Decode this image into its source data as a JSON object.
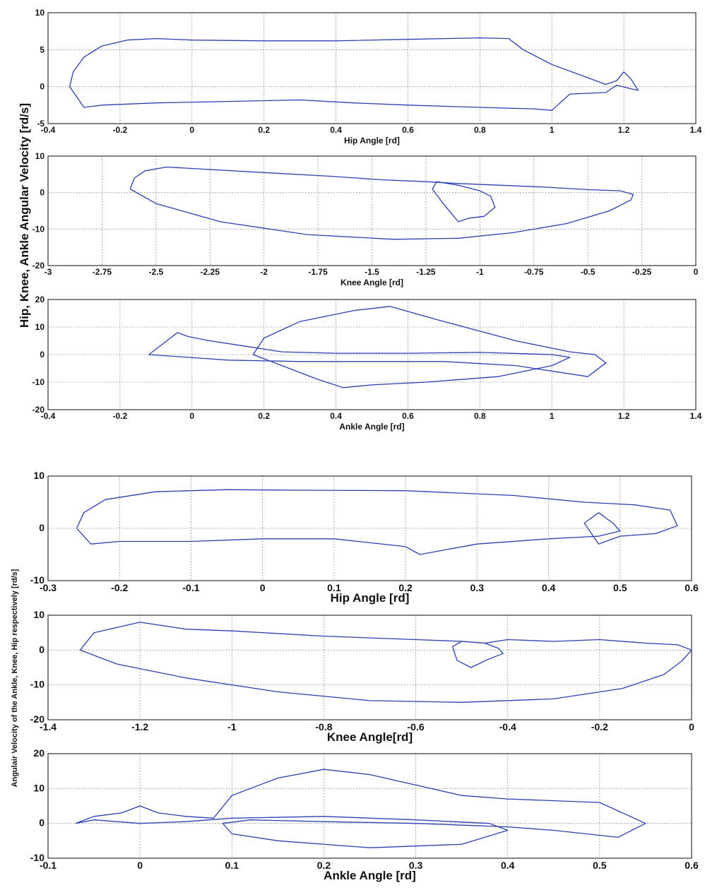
{
  "figure": {
    "ylabel_top": "Hip, Knee, Ankle Angular Velocity [rd/s]",
    "ylabel_bottom": "Angulair Velocity of the Ankle, Knee, Hip respectively [rd/s]"
  },
  "chart_data": [
    {
      "type": "line",
      "xlabel": "Hip Angle [rd]",
      "ylabel": "",
      "xlim": [
        -0.4,
        1.4
      ],
      "ylim": [
        -5,
        10
      ],
      "xticks": [
        "-0.4",
        "-0.2",
        "0",
        "0.2",
        "0.4",
        "0.6",
        "0.8",
        "1",
        "1.2",
        "1.4"
      ],
      "yticks": [
        "-5",
        "0",
        "5",
        "10"
      ],
      "grid": true,
      "series": [
        {
          "x": [
            -0.34,
            -0.33,
            -0.3,
            -0.25,
            -0.18,
            -0.1,
            0.0,
            0.2,
            0.4,
            0.6,
            0.8,
            0.88,
            0.92,
            1.0,
            1.1,
            1.15,
            1.18,
            1.2,
            1.22,
            1.24,
            1.22,
            1.18,
            1.15,
            1.05,
            1.0,
            0.95,
            0.8,
            0.6,
            0.45,
            0.3,
            0.1,
            -0.1,
            -0.25,
            -0.3,
            -0.34
          ],
          "y": [
            0.0,
            2.0,
            4.0,
            5.5,
            6.3,
            6.5,
            6.3,
            6.2,
            6.2,
            6.4,
            6.6,
            6.5,
            5.0,
            3.0,
            1.2,
            0.3,
            0.8,
            2.0,
            1.0,
            -0.5,
            -0.3,
            0.2,
            -0.8,
            -1.0,
            -3.2,
            -3.0,
            -2.8,
            -2.5,
            -2.2,
            -1.8,
            -2.0,
            -2.2,
            -2.5,
            -2.8,
            0.0
          ]
        }
      ]
    },
    {
      "type": "line",
      "xlabel": "Knee Angle [rd]",
      "ylabel": "",
      "xlim": [
        -3,
        0
      ],
      "ylim": [
        -20,
        10
      ],
      "xticks": [
        "-3",
        "-2.75",
        "-2.5",
        "-2.25",
        "-2",
        "-1.75",
        "-1.5",
        "-1.25",
        "-1",
        "-0.75",
        "-0.5",
        "-0.25",
        "0"
      ],
      "yticks": [
        "-20",
        "-10",
        "0",
        "10"
      ],
      "grid": true,
      "series": [
        {
          "x": [
            -2.62,
            -2.6,
            -2.55,
            -2.45,
            -2.3,
            -2.0,
            -1.7,
            -1.45,
            -1.25,
            -1.1,
            -0.9,
            -0.7,
            -0.5,
            -0.35,
            -0.29,
            -0.3,
            -0.4,
            -0.6,
            -0.85,
            -1.1,
            -1.4,
            -1.8,
            -2.2,
            -2.5,
            -2.62
          ],
          "y": [
            1.0,
            4.0,
            6.0,
            7.0,
            6.5,
            5.5,
            4.5,
            3.5,
            3.0,
            2.5,
            2.0,
            1.5,
            0.8,
            0.5,
            -0.5,
            -2.0,
            -5.0,
            -8.5,
            -11.0,
            -12.5,
            -12.8,
            -11.5,
            -8.0,
            -3.0,
            1.0
          ]
        },
        {
          "x": [
            -1.22,
            -1.2,
            -1.1,
            -1.0,
            -0.95,
            -0.93,
            -0.98,
            -1.05,
            -1.1,
            -1.17,
            -1.22
          ],
          "y": [
            1.0,
            3.0,
            2.0,
            0.5,
            -1.0,
            -4.0,
            -6.5,
            -7.0,
            -8.0,
            -3.0,
            1.0
          ]
        }
      ]
    },
    {
      "type": "line",
      "xlabel": "Ankle Angle [rd]",
      "ylabel": "",
      "xlim": [
        -0.4,
        1.4
      ],
      "ylim": [
        -20,
        20
      ],
      "xticks": [
        "-0.4",
        "-0.2",
        "0",
        "0.2",
        "0.4",
        "0.6",
        "0.8",
        "1",
        "1.2",
        "1.4"
      ],
      "yticks": [
        "-20",
        "-10",
        "0",
        "10",
        "20"
      ],
      "grid": true,
      "series": [
        {
          "x": [
            -0.12,
            -0.08,
            -0.04,
            -0.01,
            0.05,
            0.15,
            0.25,
            0.4,
            0.6,
            0.8,
            1.0,
            1.05,
            1.0,
            0.85,
            0.65,
            0.5,
            0.42,
            0.35,
            0.25,
            0.17,
            0.2,
            0.3,
            0.45,
            0.55,
            0.7,
            0.9,
            1.05,
            1.12,
            1.15,
            1.1,
            0.9,
            0.7,
            0.5,
            0.3,
            0.1,
            -0.12
          ],
          "y": [
            0.0,
            4.0,
            8.0,
            6.5,
            5.0,
            3.0,
            1.0,
            0.5,
            0.5,
            0.8,
            0.0,
            -1.0,
            -4.0,
            -8.0,
            -10.0,
            -11.0,
            -12.0,
            -9.0,
            -4.0,
            0.0,
            6.0,
            12.0,
            16.0,
            17.5,
            12.0,
            5.0,
            1.0,
            0.0,
            -3.0,
            -8.0,
            -4.0,
            -2.5,
            -2.5,
            -2.5,
            -2.0,
            0.0
          ]
        }
      ]
    },
    {
      "type": "line",
      "xlabel": "Hip Angle [rd]",
      "ylabel": "",
      "xlim": [
        -0.3,
        0.6
      ],
      "ylim": [
        -10,
        10
      ],
      "xticks": [
        "-0.3",
        "-0.2",
        "-0.1",
        "0",
        "0.1",
        "0.2",
        "0.3",
        "0.4",
        "0.5",
        "0.6"
      ],
      "yticks": [
        "-10",
        "0",
        "10"
      ],
      "grid": true,
      "series": [
        {
          "x": [
            -0.26,
            -0.25,
            -0.22,
            -0.15,
            -0.05,
            0.05,
            0.2,
            0.35,
            0.45,
            0.52,
            0.57,
            0.58,
            0.55,
            0.5,
            0.47,
            0.46,
            0.45,
            0.47,
            0.49,
            0.5,
            0.47,
            0.4,
            0.3,
            0.22,
            0.2,
            0.1,
            0.0,
            -0.1,
            -0.2,
            -0.24,
            -0.26
          ],
          "y": [
            0.0,
            3.0,
            5.5,
            7.0,
            7.4,
            7.3,
            7.2,
            6.3,
            5.0,
            4.5,
            3.5,
            0.5,
            -1.0,
            -1.5,
            -3.0,
            -1.0,
            1.0,
            3.0,
            1.0,
            -0.5,
            -1.5,
            -2.0,
            -3.0,
            -5.0,
            -3.5,
            -2.0,
            -2.0,
            -2.5,
            -2.5,
            -3.0,
            0.0
          ]
        }
      ]
    },
    {
      "type": "line",
      "xlabel": "Knee Angle[rd]",
      "ylabel": "",
      "xlim": [
        -1.4,
        0
      ],
      "ylim": [
        -20,
        10
      ],
      "xticks": [
        "-1.4",
        "-1.2",
        "-1",
        "-0.8",
        "-0.6",
        "-0.4",
        "-0.2",
        "0"
      ],
      "yticks": [
        "-20",
        "-10",
        "0",
        "10"
      ],
      "grid": true,
      "series": [
        {
          "x": [
            -1.33,
            -1.3,
            -1.2,
            -1.1,
            -1.0,
            -0.8,
            -0.6,
            -0.5,
            -0.45,
            -0.4,
            -0.3,
            -0.2,
            -0.1,
            -0.03,
            0.0,
            -0.02,
            -0.06,
            -0.15,
            -0.3,
            -0.5,
            -0.7,
            -0.9,
            -1.1,
            -1.25,
            -1.33
          ],
          "y": [
            0.0,
            5.0,
            8.0,
            6.0,
            5.5,
            4.0,
            3.0,
            2.5,
            2.0,
            3.0,
            2.5,
            3.0,
            2.0,
            1.5,
            0.0,
            -3.0,
            -7.0,
            -11.0,
            -14.0,
            -15.0,
            -14.5,
            -12.0,
            -8.0,
            -4.0,
            0.0
          ]
        },
        {
          "x": [
            -0.52,
            -0.5,
            -0.45,
            -0.42,
            -0.41,
            -0.44,
            -0.48,
            -0.51,
            -0.52
          ],
          "y": [
            1.0,
            2.5,
            2.0,
            0.5,
            -1.0,
            -2.5,
            -5.0,
            -3.0,
            1.0
          ]
        }
      ]
    },
    {
      "type": "line",
      "xlabel": "Ankle Angle [rd]",
      "ylabel": "",
      "xlim": [
        -0.1,
        0.6
      ],
      "ylim": [
        -10,
        20
      ],
      "xticks": [
        "-0.1",
        "0",
        "0.1",
        "0.2",
        "0.3",
        "0.4",
        "0.5",
        "0.6"
      ],
      "yticks": [
        "-10",
        "0",
        "10",
        "20"
      ],
      "grid": true,
      "series": [
        {
          "x": [
            -0.07,
            -0.05,
            -0.02,
            0.0,
            0.02,
            0.05,
            0.08,
            0.1,
            0.15,
            0.2,
            0.25,
            0.3,
            0.35,
            0.4,
            0.5,
            0.55,
            0.52,
            0.45,
            0.4,
            0.3,
            0.2,
            0.12,
            0.09,
            0.1,
            0.15,
            0.25,
            0.35,
            0.4,
            0.38,
            0.3,
            0.2,
            0.1,
            0.05,
            0.0,
            -0.05,
            -0.07
          ],
          "y": [
            0.0,
            2.0,
            3.0,
            5.0,
            3.0,
            2.0,
            1.5,
            8.0,
            13.0,
            15.5,
            14.0,
            11.0,
            8.0,
            7.0,
            6.0,
            0.0,
            -4.0,
            -2.0,
            -1.0,
            0.0,
            0.5,
            1.0,
            0.0,
            -3.0,
            -5.0,
            -7.0,
            -6.0,
            -2.0,
            0.0,
            1.0,
            2.0,
            1.5,
            0.5,
            0.0,
            1.0,
            0.0
          ]
        }
      ]
    }
  ]
}
